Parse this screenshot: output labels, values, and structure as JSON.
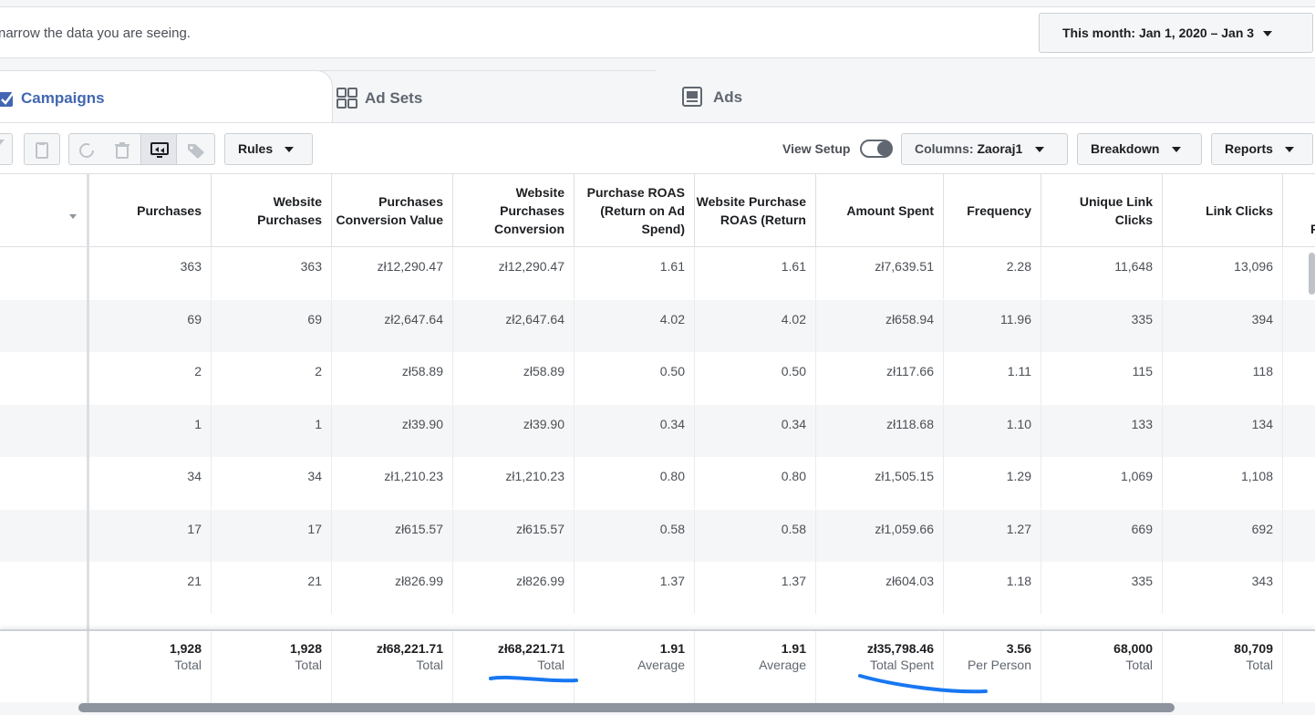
{
  "filter": {
    "text": "narrow the data you are seeing.",
    "date_range": "This month: Jan 1, 2020 – Jan 3"
  },
  "tabs": [
    {
      "label": "Campaigns",
      "icon": "campaign-icon",
      "active": true
    },
    {
      "label": "Ad Sets",
      "icon": "grid-icon",
      "active": false
    },
    {
      "label": "Ads",
      "icon": "ad-icon",
      "active": false
    }
  ],
  "toolbar": {
    "rules": "Rules",
    "view_setup": "View Setup",
    "columns_prefix": "Columns:",
    "columns_value": "Zaoraj1",
    "breakdown": "Breakdown",
    "reports": "Reports"
  },
  "table": {
    "columns": [
      "Purchases",
      "Website Purchases",
      "Purchases Conversion Value",
      "Website Purchases Conversion",
      "Purchase ROAS (Return on Ad Spend)",
      "Website Purchase ROAS (Return",
      "Amount Spent",
      "Frequency",
      "Unique Link Clicks",
      "Link Clicks"
    ],
    "rows": [
      [
        "363",
        "363",
        "zł12,290.47",
        "zł12,290.47",
        "1.61",
        "1.61",
        "zł7,639.51",
        "2.28",
        "11,648",
        "13,096"
      ],
      [
        "69",
        "69",
        "zł2,647.64",
        "zł2,647.64",
        "4.02",
        "4.02",
        "zł658.94",
        "11.96",
        "335",
        "394"
      ],
      [
        "2",
        "2",
        "zł58.89",
        "zł58.89",
        "0.50",
        "0.50",
        "zł117.66",
        "1.11",
        "115",
        "118"
      ],
      [
        "1",
        "1",
        "zł39.90",
        "zł39.90",
        "0.34",
        "0.34",
        "zł118.68",
        "1.10",
        "133",
        "134"
      ],
      [
        "34",
        "34",
        "zł1,210.23",
        "zł1,210.23",
        "0.80",
        "0.80",
        "zł1,505.15",
        "1.29",
        "1,069",
        "1,108"
      ],
      [
        "17",
        "17",
        "zł615.57",
        "zł615.57",
        "0.58",
        "0.58",
        "zł1,059.66",
        "1.27",
        "669",
        "692"
      ],
      [
        "21",
        "21",
        "zł826.99",
        "zł826.99",
        "1.37",
        "1.37",
        "zł604.03",
        "1.18",
        "335",
        "343"
      ]
    ],
    "totals": [
      {
        "value": "1,928",
        "label": "Total"
      },
      {
        "value": "1,928",
        "label": "Total"
      },
      {
        "value": "zł68,221.71",
        "label": "Total"
      },
      {
        "value": "zł68,221.71",
        "label": "Total"
      },
      {
        "value": "1.91",
        "label": "Average"
      },
      {
        "value": "1.91",
        "label": "Average"
      },
      {
        "value": "zł35,798.46",
        "label": "Total Spent"
      },
      {
        "value": "3.56",
        "label": "Per Person"
      },
      {
        "value": "68,000",
        "label": "Total"
      },
      {
        "value": "80,709",
        "label": "Total"
      }
    ]
  },
  "colors": {
    "accent": "#4267b2",
    "annotation": "#1877f2"
  }
}
